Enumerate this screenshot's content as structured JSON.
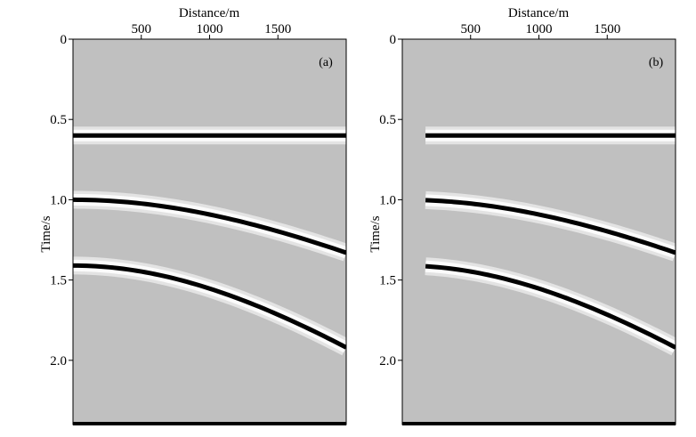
{
  "chart_data": [
    {
      "type": "seismic-gather",
      "panel_label": "(a)",
      "xlabel": "Distance/m",
      "ylabel": "Time/s",
      "x_ticks": [
        "500",
        "1000",
        "1500"
      ],
      "x_tick_values": [
        500,
        1000,
        1500
      ],
      "y_ticks": [
        "0",
        "0.5",
        "1.0",
        "1.5",
        "2.0"
      ],
      "y_tick_values": [
        0,
        0.5,
        1.0,
        1.5,
        2.0
      ],
      "xlim": [
        0,
        2000
      ],
      "ylim": [
        0,
        2.4
      ],
      "trace_start": 0,
      "events": [
        {
          "shape": "flat",
          "t0": 0.6
        },
        {
          "shape": "hyperbola",
          "t0": 1.0,
          "end_time": 1.33
        },
        {
          "shape": "hyperbola",
          "t0": 1.41,
          "end_time": 1.92
        }
      ],
      "background_color": "#c0c0c0",
      "event_color": "#000000",
      "halo_color": "#ffffff"
    },
    {
      "type": "seismic-gather",
      "panel_label": "(b)",
      "xlabel": "Distance/m",
      "ylabel": "Time/s",
      "x_ticks": [
        "500",
        "1000",
        "1500"
      ],
      "x_tick_values": [
        500,
        1000,
        1500
      ],
      "y_ticks": [
        "0",
        "0.5",
        "1.0",
        "1.5",
        "2.0"
      ],
      "y_tick_values": [
        0,
        0.5,
        1.0,
        1.5,
        2.0
      ],
      "xlim": [
        0,
        2000
      ],
      "ylim": [
        0,
        2.4
      ],
      "trace_start": 170,
      "events": [
        {
          "shape": "flat",
          "t0": 0.6
        },
        {
          "shape": "hyperbola",
          "t0": 1.0,
          "end_time": 1.33
        },
        {
          "shape": "hyperbola",
          "t0": 1.41,
          "end_time": 1.92
        }
      ],
      "background_color": "#c0c0c0",
      "event_color": "#000000",
      "halo_color": "#ffffff"
    }
  ]
}
